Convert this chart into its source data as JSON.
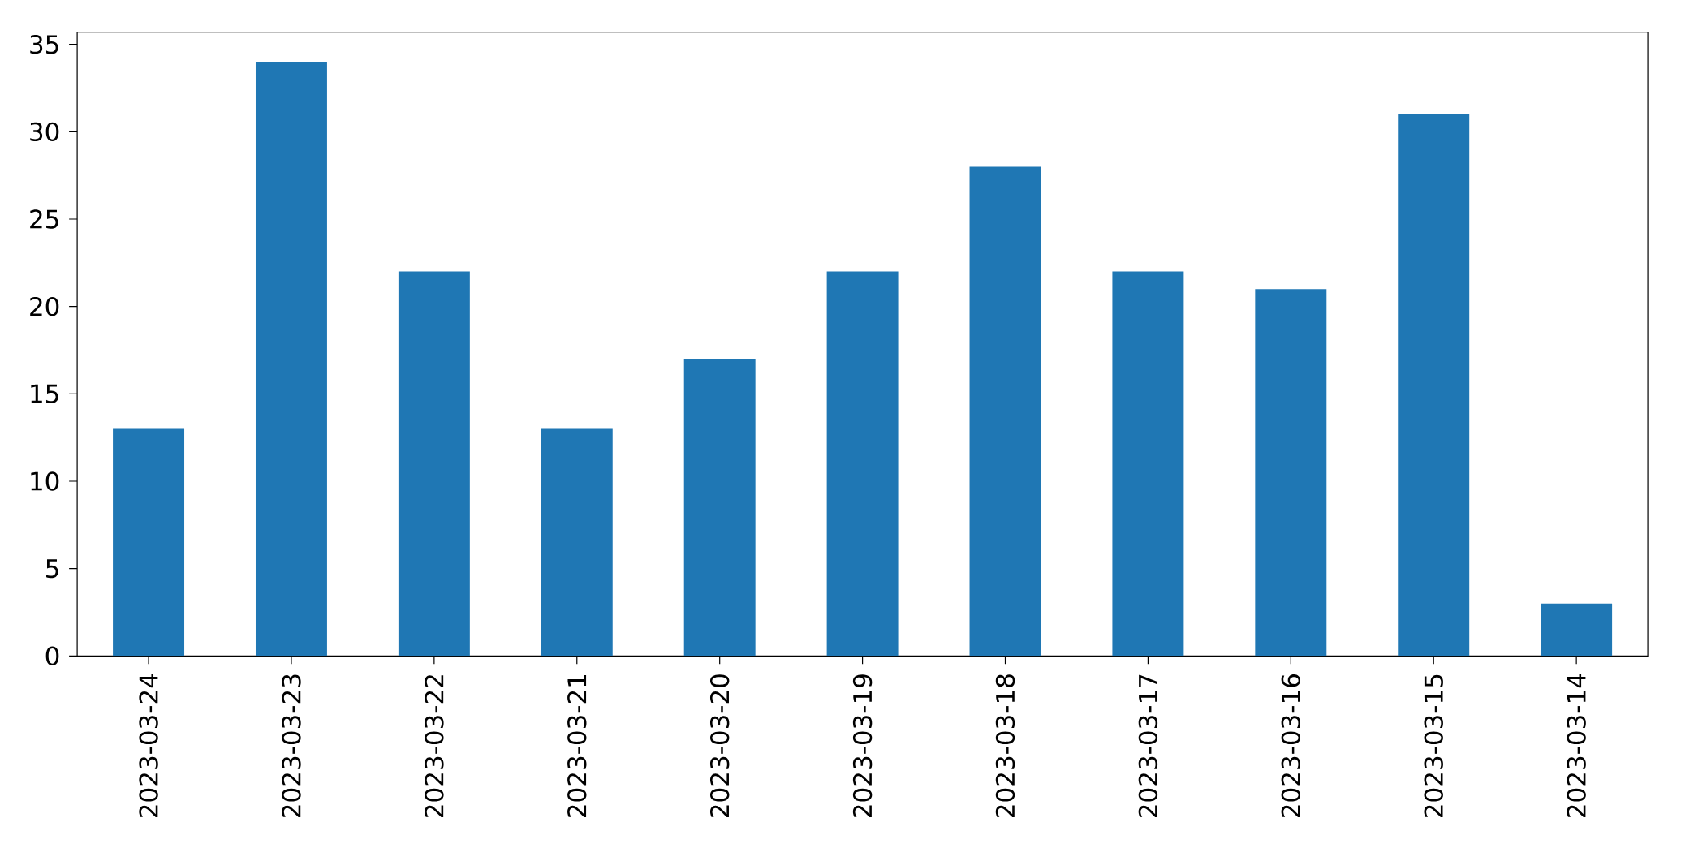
{
  "chart_data": {
    "type": "bar",
    "categories": [
      "2023-03-24",
      "2023-03-23",
      "2023-03-22",
      "2023-03-21",
      "2023-03-20",
      "2023-03-19",
      "2023-03-18",
      "2023-03-17",
      "2023-03-16",
      "2023-03-15",
      "2023-03-14"
    ],
    "values": [
      13,
      34,
      22,
      13,
      17,
      22,
      28,
      22,
      21,
      31,
      3
    ],
    "color": "#1f77b4",
    "ylim": [
      0,
      35.7
    ],
    "yticks": [
      0,
      5,
      10,
      15,
      20,
      25,
      30,
      35
    ]
  }
}
